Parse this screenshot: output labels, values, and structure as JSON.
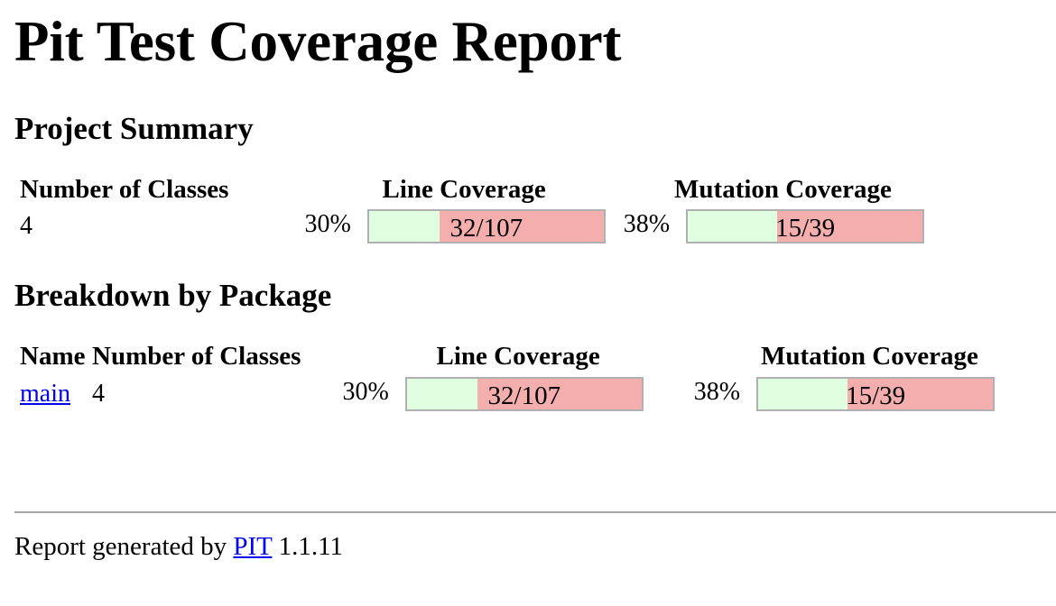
{
  "title": "Pit Test Coverage Report",
  "project_summary": {
    "heading": "Project Summary",
    "headers": {
      "classes": "Number of Classes",
      "line": "Line Coverage",
      "mutation": "Mutation Coverage"
    },
    "classes": "4",
    "line_pct": "30%",
    "line_ratio": "32/107",
    "line_fraction": 0.3,
    "mutation_pct": "38%",
    "mutation_ratio": "15/39",
    "mutation_fraction": 0.38
  },
  "breakdown": {
    "heading": "Breakdown by Package",
    "headers": {
      "name": "Name",
      "classes": "Number of Classes",
      "line": "Line Coverage",
      "mutation": "Mutation Coverage"
    },
    "rows": [
      {
        "name": "main",
        "classes": "4",
        "line_pct": "30%",
        "line_ratio": "32/107",
        "line_fraction": 0.3,
        "mutation_pct": "38%",
        "mutation_ratio": "15/39",
        "mutation_fraction": 0.38
      }
    ]
  },
  "footer": {
    "prefix": "Report generated by",
    "link": "PIT",
    "version": "1.1.11"
  },
  "colors": {
    "covered": "#e0ffe0",
    "uncovered": "#f4aeae",
    "link": "#0000ee"
  }
}
